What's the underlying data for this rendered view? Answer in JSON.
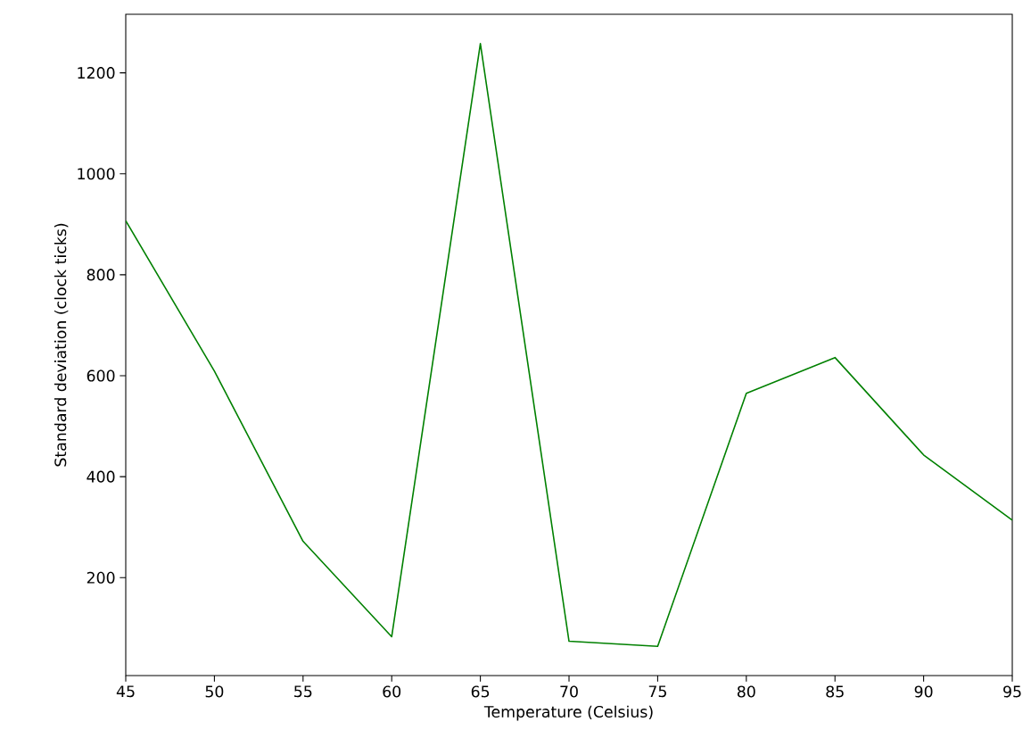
{
  "chart_data": {
    "type": "line",
    "xlabel": "Temperature (Celsius)",
    "ylabel": "Standard deviation (clock ticks)",
    "x": [
      45,
      50,
      55,
      60,
      65,
      70,
      75,
      80,
      85,
      90,
      95
    ],
    "series": [
      {
        "color": "#008000",
        "values": [
          907,
          609,
          272,
          83,
          1258,
          74,
          64,
          565,
          636,
          443,
          314
        ]
      }
    ],
    "xlim": [
      45,
      95
    ],
    "ylim": [
      6,
      1316
    ],
    "xticks": [
      45,
      50,
      55,
      60,
      65,
      70,
      75,
      80,
      85,
      90,
      95
    ],
    "yticks": [
      200,
      400,
      600,
      800,
      1000,
      1200
    ],
    "marker": "none",
    "line_style": "solid"
  }
}
